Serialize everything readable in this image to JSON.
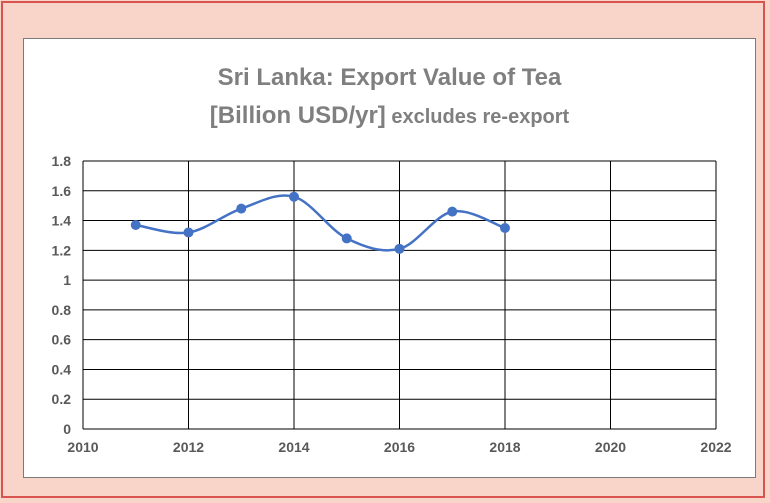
{
  "chart_data": {
    "type": "line",
    "title_line1": "Sri Lanka: Export Value of Tea",
    "title_line2_main": "[Billion USD/yr]",
    "title_line2_sub": " excludes re-export",
    "xlabel": "",
    "ylabel": "",
    "xlim": [
      2010,
      2022
    ],
    "ylim": [
      0,
      1.8
    ],
    "x_ticks": [
      2010,
      2012,
      2014,
      2016,
      2018,
      2020,
      2022
    ],
    "y_ticks": [
      0,
      0.2,
      0.4,
      0.6,
      0.8,
      1,
      1.2,
      1.4,
      1.6,
      1.8
    ],
    "x_tick_labels": [
      "2010",
      "2012",
      "2014",
      "2016",
      "2018",
      "2020",
      "2022"
    ],
    "y_tick_labels": [
      "0",
      "0.2",
      "0.4",
      "0.6",
      "0.8",
      "1",
      "1.2",
      "1.4",
      "1.6",
      "1.8"
    ],
    "grid": true,
    "smooth": true,
    "series": [
      {
        "x": [
          2011,
          2012,
          2013,
          2014,
          2015,
          2016,
          2017,
          2018
        ],
        "values": [
          1.37,
          1.32,
          1.48,
          1.56,
          1.28,
          1.21,
          1.46,
          1.35
        ],
        "color": "#4472c4"
      }
    ]
  },
  "colors": {
    "background": "#f8d5c8",
    "border": "#d9534f",
    "title": "#7f7f7f",
    "series": "#4472c4"
  }
}
